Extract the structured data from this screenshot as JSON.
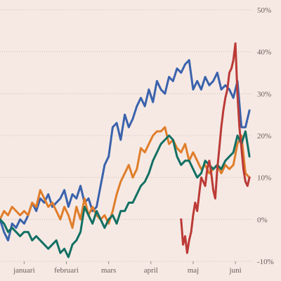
{
  "chart_data": {
    "type": "line",
    "title": "",
    "xlabel": "",
    "ylabel": "",
    "x_range": [
      0,
      125
    ],
    "ylim": [
      -10,
      50
    ],
    "y_ticks": [
      {
        "value": -10,
        "label": "-10%"
      },
      {
        "value": 0,
        "label": "0%"
      },
      {
        "value": 10,
        "label": "10%"
      },
      {
        "value": 20,
        "label": "20%"
      },
      {
        "value": 30,
        "label": "30%"
      },
      {
        "value": 40,
        "label": "40%"
      },
      {
        "value": 50,
        "label": "50%"
      }
    ],
    "x_ticks": [
      {
        "value": 12,
        "label": "januari"
      },
      {
        "value": 33,
        "label": "februari"
      },
      {
        "value": 54,
        "label": "mars"
      },
      {
        "value": 75,
        "label": "april"
      },
      {
        "value": 96,
        "label": "maj"
      },
      {
        "value": 117,
        "label": "juni"
      }
    ],
    "grid": true,
    "legend": "none",
    "series": [
      {
        "color": "#3a62ac",
        "x": [
          0,
          2,
          4,
          6,
          8,
          10,
          12,
          14,
          16,
          18,
          20,
          22,
          24,
          26,
          28,
          30,
          32,
          34,
          36,
          38,
          40,
          42,
          44,
          46,
          48,
          50,
          52,
          54,
          56,
          58,
          60,
          62,
          64,
          66,
          68,
          70,
          72,
          74,
          76,
          78,
          80,
          82,
          84,
          86,
          88,
          90,
          92,
          94,
          96,
          98,
          100,
          102,
          104,
          106,
          108,
          110,
          112,
          114,
          116,
          118,
          120,
          122,
          124
        ],
        "y": [
          0,
          -3,
          -5,
          -1,
          -2,
          0,
          -1,
          1,
          4,
          2,
          5,
          4,
          6,
          3,
          4,
          5,
          7,
          3,
          6,
          5,
          8,
          4,
          5,
          2,
          3,
          8,
          13,
          15,
          22,
          23,
          19,
          25,
          22,
          24,
          27,
          29,
          27,
          31,
          28,
          33,
          31,
          30,
          34,
          33,
          36,
          35,
          37,
          38,
          31,
          33,
          31,
          34,
          32,
          33,
          35,
          31,
          32,
          31,
          29,
          33,
          22,
          22,
          26
        ]
      },
      {
        "color": "#e07d2a",
        "x": [
          0,
          2,
          4,
          6,
          8,
          10,
          12,
          14,
          16,
          18,
          20,
          22,
          24,
          26,
          28,
          30,
          32,
          34,
          36,
          38,
          40,
          42,
          44,
          46,
          48,
          50,
          52,
          54,
          56,
          58,
          60,
          62,
          64,
          66,
          68,
          70,
          72,
          74,
          76,
          78,
          80,
          82,
          84,
          86,
          88,
          90,
          92,
          94,
          96,
          98,
          100,
          102,
          104,
          106,
          108,
          110,
          112,
          114,
          116,
          118,
          120,
          122,
          124
        ],
        "y": [
          0,
          2,
          1,
          3,
          2,
          1,
          2,
          1,
          4,
          3,
          7,
          5,
          3,
          4,
          2,
          0,
          3,
          1,
          -2,
          3,
          0,
          5,
          1,
          3,
          1,
          0,
          1,
          -1,
          2,
          6,
          9,
          11,
          13,
          10,
          12,
          17,
          16,
          18,
          20,
          21,
          21,
          22,
          18,
          19,
          17,
          16,
          18,
          14,
          16,
          14,
          12,
          13,
          11,
          12,
          13,
          11,
          13,
          12,
          13,
          18,
          20,
          11,
          10
        ]
      },
      {
        "color": "#127063",
        "x": [
          0,
          2,
          4,
          6,
          8,
          10,
          12,
          14,
          16,
          18,
          20,
          22,
          24,
          26,
          28,
          30,
          32,
          34,
          36,
          38,
          40,
          42,
          44,
          46,
          48,
          50,
          52,
          54,
          56,
          58,
          60,
          62,
          64,
          66,
          68,
          70,
          72,
          74,
          76,
          78,
          80,
          82,
          84,
          86,
          88,
          90,
          92,
          94,
          96,
          98,
          100,
          102,
          104,
          106,
          108,
          110,
          112,
          114,
          116,
          118,
          120,
          122,
          124
        ],
        "y": [
          0,
          -1,
          -3,
          -2,
          -3,
          -4,
          -3,
          -3,
          -5,
          -4,
          -5,
          -6,
          -7,
          -6,
          -5,
          -8,
          -7,
          -9,
          -6,
          -5,
          -3,
          3,
          1,
          -1,
          2,
          0,
          -2,
          0,
          1,
          -1,
          2,
          2,
          4,
          4,
          6,
          8,
          9,
          11,
          14,
          16,
          18,
          19,
          20,
          19,
          15,
          13,
          14,
          14,
          12,
          10,
          11,
          14,
          13,
          12,
          13,
          12,
          14,
          15,
          16,
          20,
          18,
          21,
          15
        ]
      },
      {
        "color": "#bb3a36",
        "x": [
          90,
          91,
          92,
          93,
          94,
          95,
          96,
          97,
          98,
          99,
          100,
          101,
          102,
          103,
          104,
          105,
          106,
          107,
          108,
          109,
          110,
          111,
          112,
          113,
          114,
          115,
          116,
          117,
          118,
          119,
          120,
          121,
          122,
          123,
          124
        ],
        "y": [
          0,
          -6,
          -4,
          -8,
          -5,
          -3,
          1,
          4,
          2,
          6,
          10,
          9,
          8,
          12,
          14,
          11,
          7,
          5,
          12,
          17,
          22,
          26,
          29,
          31,
          35,
          36,
          38,
          42,
          30,
          22,
          17,
          12,
          9,
          8,
          10
        ]
      }
    ]
  }
}
